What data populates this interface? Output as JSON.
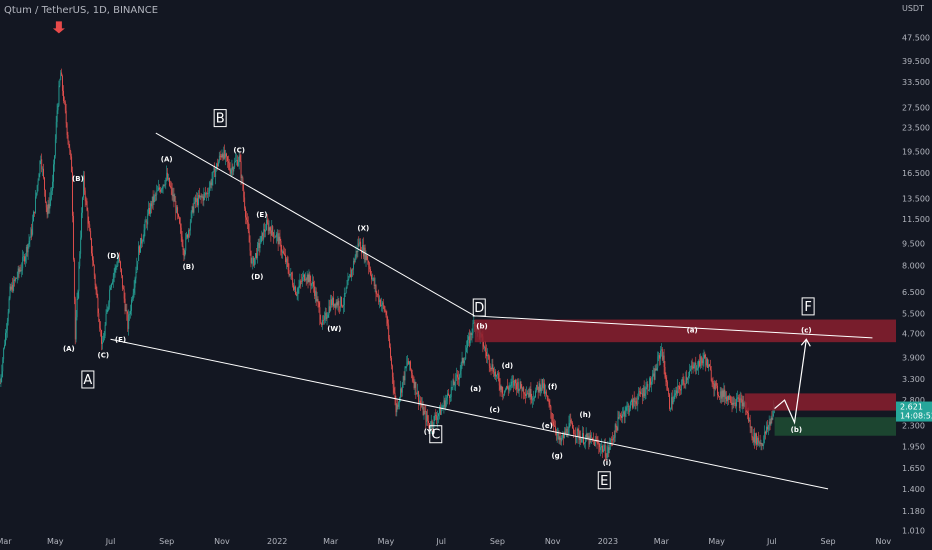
{
  "header": {
    "symbol_title": "Qtum / TetherUS, 1D, BINANCE",
    "currency": "USDT"
  },
  "price_badge": {
    "price": "2.621",
    "countdown": "14:08:52",
    "color": "#26a69a"
  },
  "colors": {
    "background": "#131722",
    "up": "#26a69a",
    "down": "#ef5350",
    "line": "#ffffff",
    "resistance_zone": "#8b1e2e",
    "support_zone": "#1e4d33",
    "arrow": "#e84a4a"
  },
  "chart_data": {
    "type": "candlestick",
    "x_start": "2021-03-01",
    "x_end": "2023-11-15",
    "y_scale": "log",
    "ylim": [
      1.0,
      57.0
    ],
    "x_ticks": [
      {
        "label": "Mar",
        "date": "2021-03-01"
      },
      {
        "label": "May",
        "date": "2021-05-01"
      },
      {
        "label": "Jul",
        "date": "2021-07-01"
      },
      {
        "label": "Sep",
        "date": "2021-09-01"
      },
      {
        "label": "Nov",
        "date": "2021-11-01"
      },
      {
        "label": "2022",
        "date": "2022-01-01"
      },
      {
        "label": "Mar",
        "date": "2022-03-01"
      },
      {
        "label": "May",
        "date": "2022-05-01"
      },
      {
        "label": "Jul",
        "date": "2022-07-01"
      },
      {
        "label": "Sep",
        "date": "2022-09-01"
      },
      {
        "label": "Nov",
        "date": "2022-11-01"
      },
      {
        "label": "2023",
        "date": "2023-01-01"
      },
      {
        "label": "Mar",
        "date": "2023-03-01"
      },
      {
        "label": "May",
        "date": "2023-05-01"
      },
      {
        "label": "Jul",
        "date": "2023-07-01"
      },
      {
        "label": "Sep",
        "date": "2023-09-01"
      },
      {
        "label": "Nov",
        "date": "2023-11-01"
      }
    ],
    "y_ticks": [
      "47.500",
      "39.500",
      "33.500",
      "27.500",
      "23.500",
      "19.500",
      "16.500",
      "13.500",
      "11.500",
      "9.500",
      "8.000",
      "6.500",
      "5.500",
      "4.700",
      "3.900",
      "3.300",
      "2.800",
      "2.300",
      "1.950",
      "1.650",
      "1.400",
      "1.180",
      "1.010"
    ],
    "price_path": [
      [
        "2021-03-01",
        3.2
      ],
      [
        "2021-03-12",
        6.5
      ],
      [
        "2021-03-25",
        8.0
      ],
      [
        "2021-04-05",
        10.5
      ],
      [
        "2021-04-15",
        19.0
      ],
      [
        "2021-04-22",
        12.0
      ],
      [
        "2021-04-28",
        15.0
      ],
      [
        "2021-05-03",
        27.0
      ],
      [
        "2021-05-07",
        36.0
      ],
      [
        "2021-05-12",
        26.0
      ],
      [
        "2021-05-19",
        17.0
      ],
      [
        "2021-05-23",
        4.5
      ],
      [
        "2021-06-01",
        15.5
      ],
      [
        "2021-06-10",
        9.0
      ],
      [
        "2021-06-22",
        4.2
      ],
      [
        "2021-07-01",
        7.0
      ],
      [
        "2021-07-10",
        8.5
      ],
      [
        "2021-07-20",
        5.0
      ],
      [
        "2021-08-01",
        9.0
      ],
      [
        "2021-08-15",
        13.0
      ],
      [
        "2021-09-01",
        16.0
      ],
      [
        "2021-09-10",
        13.0
      ],
      [
        "2021-09-20",
        9.0
      ],
      [
        "2021-10-01",
        13.0
      ],
      [
        "2021-10-15",
        14.0
      ],
      [
        "2021-11-01",
        19.5
      ],
      [
        "2021-11-10",
        17.0
      ],
      [
        "2021-11-20",
        18.5
      ],
      [
        "2021-12-04",
        8.0
      ],
      [
        "2021-12-20",
        11.0
      ],
      [
        "2022-01-01",
        10.0
      ],
      [
        "2022-01-22",
        6.5
      ],
      [
        "2022-02-01",
        7.5
      ],
      [
        "2022-02-10",
        6.8
      ],
      [
        "2022-02-20",
        5.0
      ],
      [
        "2022-03-01",
        6.0
      ],
      [
        "2022-03-15",
        6.0
      ],
      [
        "2022-04-01",
        9.6
      ],
      [
        "2022-04-10",
        8.5
      ],
      [
        "2022-04-20",
        6.5
      ],
      [
        "2022-05-01",
        5.5
      ],
      [
        "2022-05-12",
        2.6
      ],
      [
        "2022-05-25",
        3.8
      ],
      [
        "2022-06-10",
        2.6
      ],
      [
        "2022-06-18",
        2.3
      ],
      [
        "2022-07-01",
        2.6
      ],
      [
        "2022-07-20",
        3.4
      ],
      [
        "2022-08-07",
        5.2
      ],
      [
        "2022-08-20",
        4.0
      ],
      [
        "2022-09-07",
        3.0
      ],
      [
        "2022-09-20",
        3.2
      ],
      [
        "2022-10-10",
        2.9
      ],
      [
        "2022-10-20",
        3.2
      ],
      [
        "2022-11-09",
        2.0
      ],
      [
        "2022-11-20",
        2.3
      ],
      [
        "2022-12-01",
        2.1
      ],
      [
        "2022-12-20",
        2.0
      ],
      [
        "2022-12-31",
        1.85
      ],
      [
        "2023-01-15",
        2.5
      ],
      [
        "2023-02-01",
        2.8
      ],
      [
        "2023-02-20",
        3.3
      ],
      [
        "2023-03-01",
        4.2
      ],
      [
        "2023-03-10",
        2.7
      ],
      [
        "2023-04-01",
        3.5
      ],
      [
        "2023-04-18",
        3.9
      ],
      [
        "2023-05-01",
        3.0
      ],
      [
        "2023-05-20",
        2.8
      ],
      [
        "2023-06-01",
        2.7
      ],
      [
        "2023-06-10",
        2.1
      ],
      [
        "2023-06-20",
        2.0
      ],
      [
        "2023-07-04",
        2.621
      ]
    ],
    "projection": [
      [
        "2023-07-04",
        2.621
      ],
      [
        "2023-07-15",
        2.8
      ],
      [
        "2023-07-26",
        2.35
      ],
      [
        "2023-08-08",
        4.5
      ]
    ],
    "zones": [
      {
        "from": "2022-08-07",
        "to": "2023-11-15",
        "low": 4.4,
        "high": 5.25,
        "kind": "resistance"
      },
      {
        "from": "2023-06-01",
        "to": "2023-11-15",
        "low": 2.58,
        "high": 2.95,
        "kind": "resistance"
      },
      {
        "from": "2023-07-04",
        "to": "2023-11-15",
        "low": 2.12,
        "high": 2.45,
        "kind": "support"
      }
    ],
    "trendlines": [
      [
        [
          "2021-08-20",
          22.5
        ],
        [
          "2022-08-07",
          5.4
        ]
      ],
      [
        [
          "2021-07-01",
          4.5
        ],
        [
          "2023-09-01",
          1.4
        ]
      ],
      [
        [
          "2022-08-07",
          5.4
        ],
        [
          "2023-10-20",
          4.55
        ]
      ]
    ],
    "wave_labels": [
      {
        "text": "(A)",
        "date": "2021-05-16",
        "price": 4.1
      },
      {
        "text": "(B)",
        "date": "2021-05-26",
        "price": 15.5
      },
      {
        "text": "(C)",
        "date": "2021-06-23",
        "price": 3.9
      },
      {
        "text": "(D)",
        "date": "2021-07-04",
        "price": 8.5
      },
      {
        "text": "(E)",
        "date": "2021-07-12",
        "price": 4.4
      },
      {
        "text": "(A)",
        "date": "2021-09-01",
        "price": 18.0
      },
      {
        "text": "(B)",
        "date": "2021-09-25",
        "price": 7.8
      },
      {
        "text": "(C)",
        "date": "2021-11-20",
        "price": 19.3
      },
      {
        "text": "(D)",
        "date": "2021-12-10",
        "price": 7.2
      },
      {
        "text": "(E)",
        "date": "2021-12-15",
        "price": 11.7
      },
      {
        "text": "(X)",
        "date": "2022-04-06",
        "price": 10.5
      },
      {
        "text": "(W)",
        "date": "2022-03-05",
        "price": 4.8
      },
      {
        "text": "(Y)",
        "date": "2022-06-18",
        "price": 2.15
      },
      {
        "text": "(b)",
        "date": "2022-08-15",
        "price": 4.9
      },
      {
        "text": "(a)",
        "date": "2022-08-08",
        "price": 3.0
      },
      {
        "text": "(c)",
        "date": "2022-08-29",
        "price": 2.55
      },
      {
        "text": "(d)",
        "date": "2022-09-12",
        "price": 3.6
      },
      {
        "text": "(e)",
        "date": "2022-10-26",
        "price": 2.25
      },
      {
        "text": "(f)",
        "date": "2022-11-01",
        "price": 3.05
      },
      {
        "text": "(g)",
        "date": "2022-11-06",
        "price": 1.78
      },
      {
        "text": "(h)",
        "date": "2022-12-07",
        "price": 2.45
      },
      {
        "text": "(i)",
        "date": "2022-12-31",
        "price": 1.69
      },
      {
        "text": "(a)",
        "date": "2023-04-04",
        "price": 4.75
      },
      {
        "text": "(c)",
        "date": "2023-08-08",
        "price": 4.75
      },
      {
        "text": "(b)",
        "date": "2023-07-28",
        "price": 2.18
      }
    ],
    "wave_boxes": [
      {
        "text": "A",
        "date": "2021-06-06",
        "price": 3.25
      },
      {
        "text": "B",
        "date": "2021-10-30",
        "price": 25.0
      },
      {
        "text": "C",
        "date": "2022-06-25",
        "price": 2.12
      },
      {
        "text": "D",
        "date": "2022-08-12",
        "price": 5.7
      },
      {
        "text": "E",
        "date": "2022-12-28",
        "price": 1.48
      },
      {
        "text": "F",
        "date": "2023-08-10",
        "price": 5.75
      }
    ],
    "sell_arrow": {
      "date": "2021-05-05",
      "price": 49.0
    }
  }
}
